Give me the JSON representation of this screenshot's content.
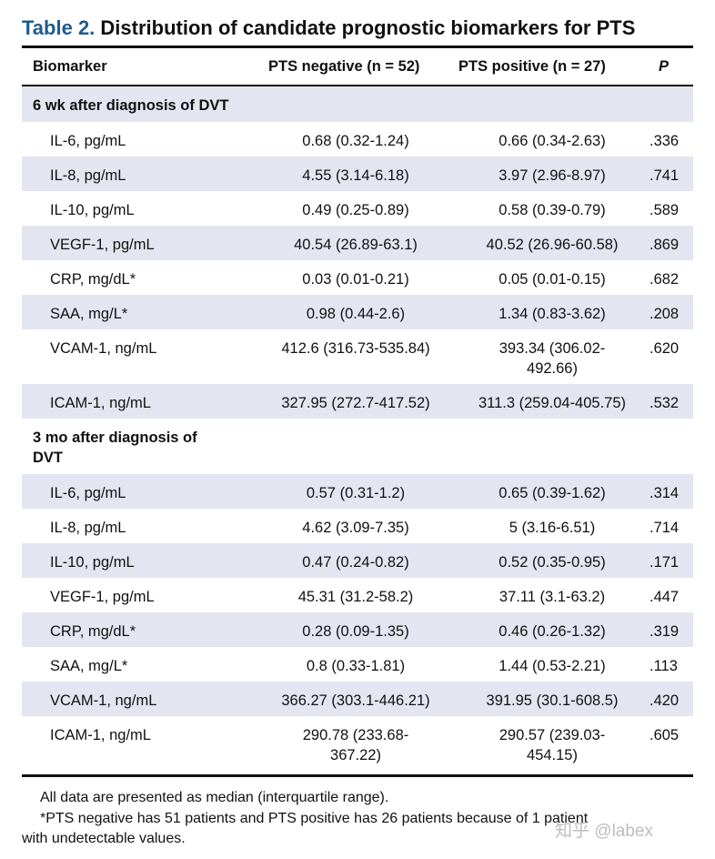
{
  "title": {
    "label": "Table 2.",
    "text": "Distribution of candidate prognostic biomarkers for PTS"
  },
  "columns": {
    "biomarker": "Biomarker",
    "pts_negative": "PTS negative (n = 52)",
    "pts_positive": "PTS positive (n = 27)",
    "p": "P"
  },
  "sections": [
    {
      "label_lines": [
        "6 wk after diagnosis of DVT"
      ],
      "rows": [
        {
          "name": "IL-6, pg/mL",
          "neg": [
            "0.68 (0.32-1.24)"
          ],
          "pos": [
            "0.66 (0.34-2.63)"
          ],
          "p": ".336"
        },
        {
          "name": "IL-8, pg/mL",
          "neg": [
            "4.55 (3.14-6.18)"
          ],
          "pos": [
            "3.97 (2.96-8.97)"
          ],
          "p": ".741"
        },
        {
          "name": "IL-10, pg/mL",
          "neg": [
            "0.49 (0.25-0.89)"
          ],
          "pos": [
            "0.58 (0.39-0.79)"
          ],
          "p": ".589"
        },
        {
          "name": "VEGF-1, pg/mL",
          "neg": [
            "40.54 (26.89-63.1)"
          ],
          "pos": [
            "40.52 (26.96-60.58)"
          ],
          "p": ".869"
        },
        {
          "name": "CRP, mg/dL*",
          "neg": [
            "0.03 (0.01-0.21)"
          ],
          "pos": [
            "0.05 (0.01-0.15)"
          ],
          "p": ".682"
        },
        {
          "name": "SAA, mg/L*",
          "neg": [
            "0.98 (0.44-2.6)"
          ],
          "pos": [
            "1.34 (0.83-3.62)"
          ],
          "p": ".208"
        },
        {
          "name": "VCAM-1, ng/mL",
          "neg": [
            "412.6 (316.73-535.84)"
          ],
          "pos": [
            "393.34 (306.02-",
            "492.66)"
          ],
          "p": ".620"
        },
        {
          "name": "ICAM-1, ng/mL",
          "neg": [
            "327.95 (272.7-417.52)"
          ],
          "pos": [
            "311.3 (259.04-405.75)"
          ],
          "p": ".532"
        }
      ]
    },
    {
      "label_lines": [
        "3 mo after diagnosis of",
        "DVT"
      ],
      "rows": [
        {
          "name": "IL-6, pg/mL",
          "neg": [
            "0.57 (0.31-1.2)"
          ],
          "pos": [
            "0.65 (0.39-1.62)"
          ],
          "p": ".314"
        },
        {
          "name": "IL-8, pg/mL",
          "neg": [
            "4.62 (3.09-7.35)"
          ],
          "pos": [
            "5 (3.16-6.51)"
          ],
          "p": ".714"
        },
        {
          "name": "IL-10, pg/mL",
          "neg": [
            "0.47 (0.24-0.82)"
          ],
          "pos": [
            "0.52 (0.35-0.95)"
          ],
          "p": ".171"
        },
        {
          "name": "VEGF-1, pg/mL",
          "neg": [
            "45.31 (31.2-58.2)"
          ],
          "pos": [
            "37.11 (3.1-63.2)"
          ],
          "p": ".447"
        },
        {
          "name": "CRP, mg/dL*",
          "neg": [
            "0.28 (0.09-1.35)"
          ],
          "pos": [
            "0.46 (0.26-1.32)"
          ],
          "p": ".319"
        },
        {
          "name": "SAA, mg/L*",
          "neg": [
            "0.8 (0.33-1.81)"
          ],
          "pos": [
            "1.44 (0.53-2.21)"
          ],
          "p": ".113"
        },
        {
          "name": "VCAM-1, ng/mL",
          "neg": [
            "366.27 (303.1-446.21)"
          ],
          "pos": [
            "391.95 (30.1-608.5)"
          ],
          "p": ".420"
        },
        {
          "name": "ICAM-1, ng/mL",
          "neg": [
            "290.78 (233.68-",
            "367.22)"
          ],
          "pos": [
            "290.57 (239.03-",
            "454.15)"
          ],
          "p": ".605"
        }
      ]
    }
  ],
  "footnotes": {
    "line1": "All data are presented as median (interquartile range).",
    "line2": "*PTS negative has 51 patients and PTS positive has 26 patients because of 1 patient",
    "line3": "with undetectable values."
  },
  "watermark": "知乎 @labex",
  "colors": {
    "title_label": "#1f5b8e",
    "row_shade": "#e3e6f1"
  }
}
